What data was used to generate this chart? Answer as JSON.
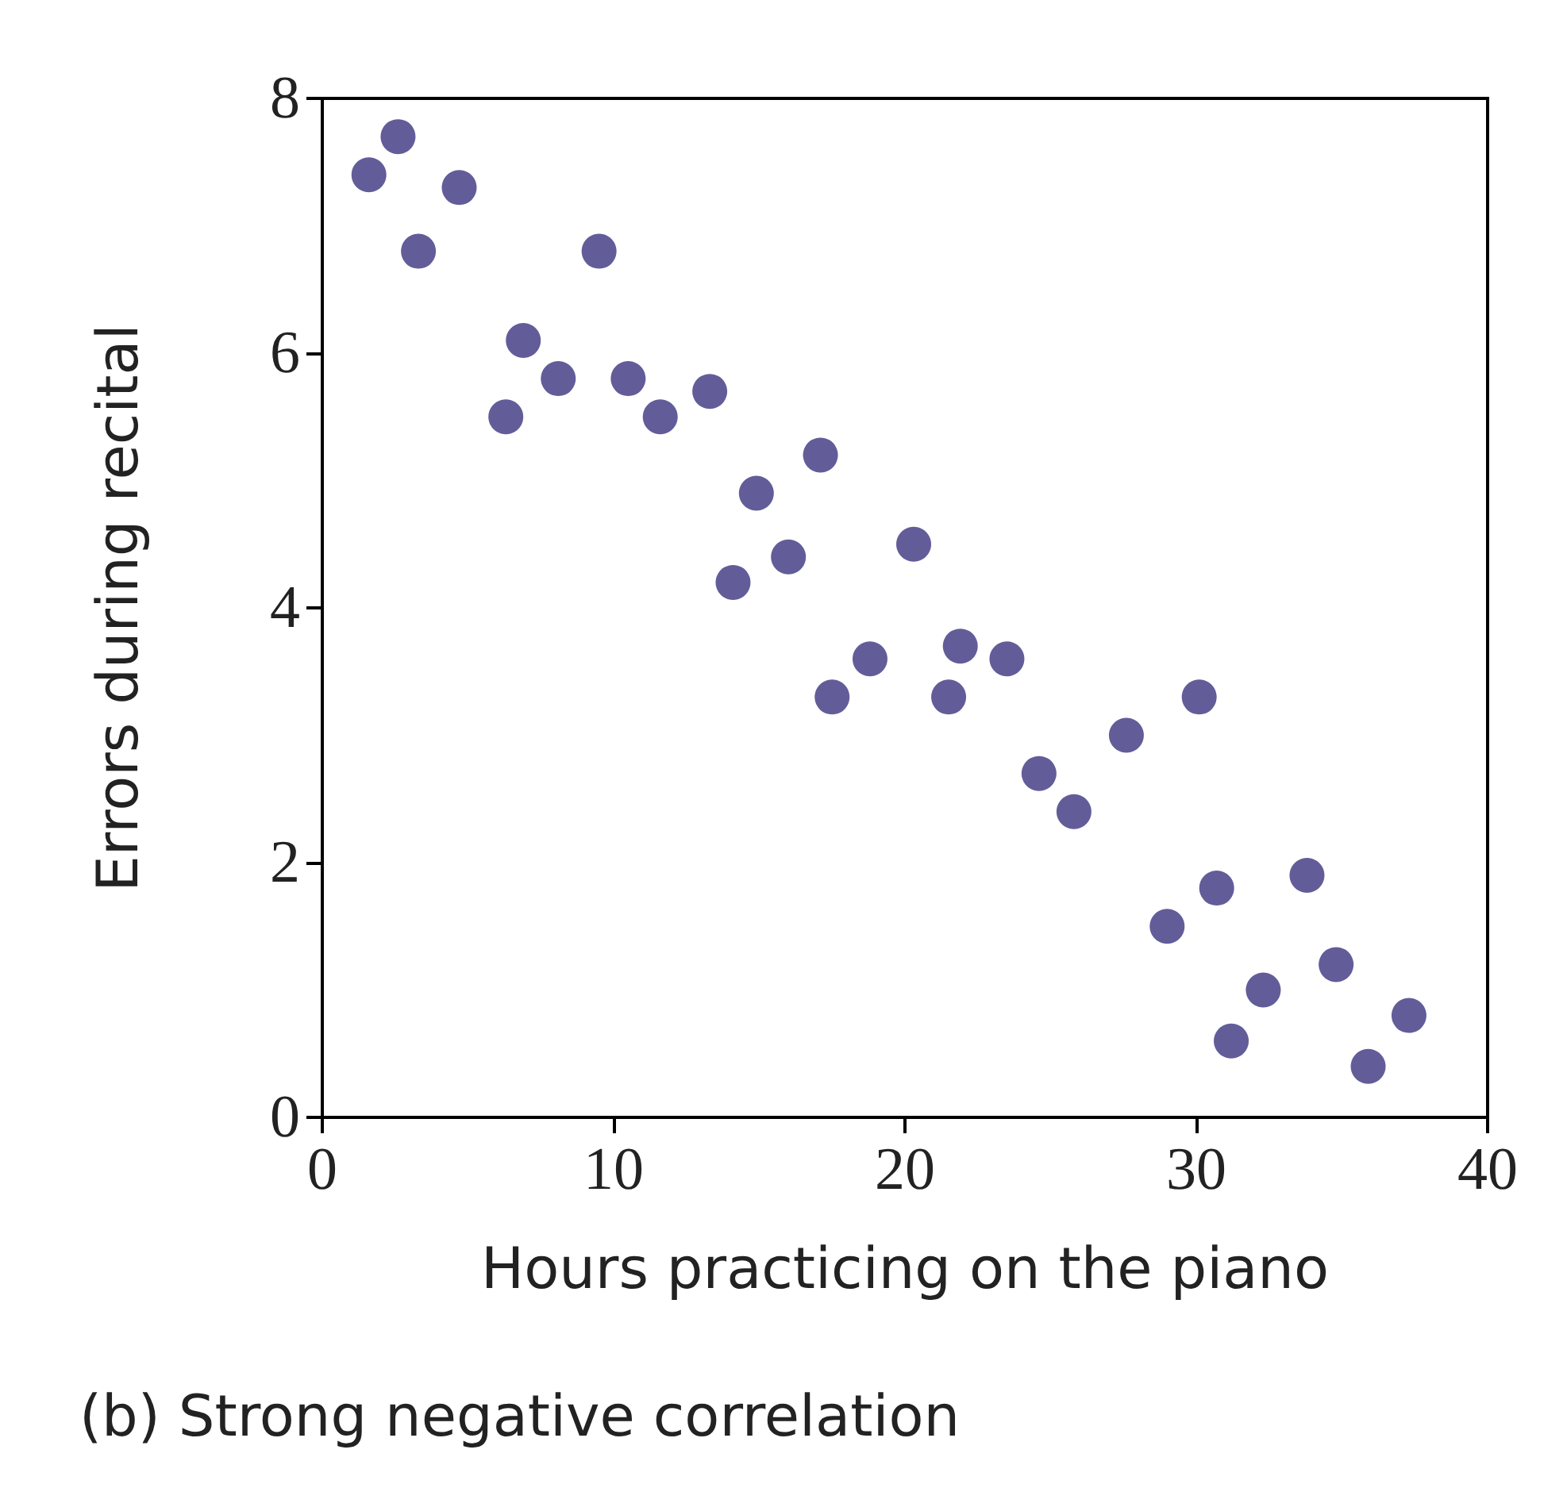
{
  "chart_data": {
    "type": "scatter",
    "xlabel": "Hours practicing on the piano",
    "ylabel": "Errors during recital",
    "annotations": [
      "(b) Strong negative correlation"
    ],
    "series": [
      {
        "color": "#3b3580",
        "x": [
          1.6,
          2.6,
          3.3,
          4.7,
          6.3,
          6.9,
          8.1,
          9.5,
          10.5,
          11.6,
          13.3,
          14.1,
          14.9,
          16.0,
          17.1,
          17.5,
          18.8,
          20.3,
          21.5,
          21.9,
          23.5,
          24.6,
          25.8,
          27.6,
          29.0,
          30.1,
          30.7,
          31.2,
          32.3,
          33.8,
          34.8,
          35.9,
          37.3
        ],
        "values": [
          7.4,
          7.7,
          6.8,
          7.3,
          5.5,
          6.1,
          5.8,
          6.8,
          5.8,
          5.5,
          5.7,
          4.2,
          4.9,
          4.4,
          5.2,
          3.3,
          3.6,
          4.5,
          3.3,
          3.7,
          3.6,
          2.7,
          2.4,
          3.0,
          1.5,
          3.3,
          1.8,
          0.6,
          1.0,
          1.9,
          1.2,
          0.4,
          0.8
        ]
      }
    ],
    "xlim": [
      0,
      40
    ],
    "xticks": [
      0,
      10,
      20,
      30,
      40
    ],
    "ylim": [
      0,
      8
    ],
    "yticks": [
      0,
      2,
      4,
      6,
      8
    ],
    "marker": "circle"
  }
}
